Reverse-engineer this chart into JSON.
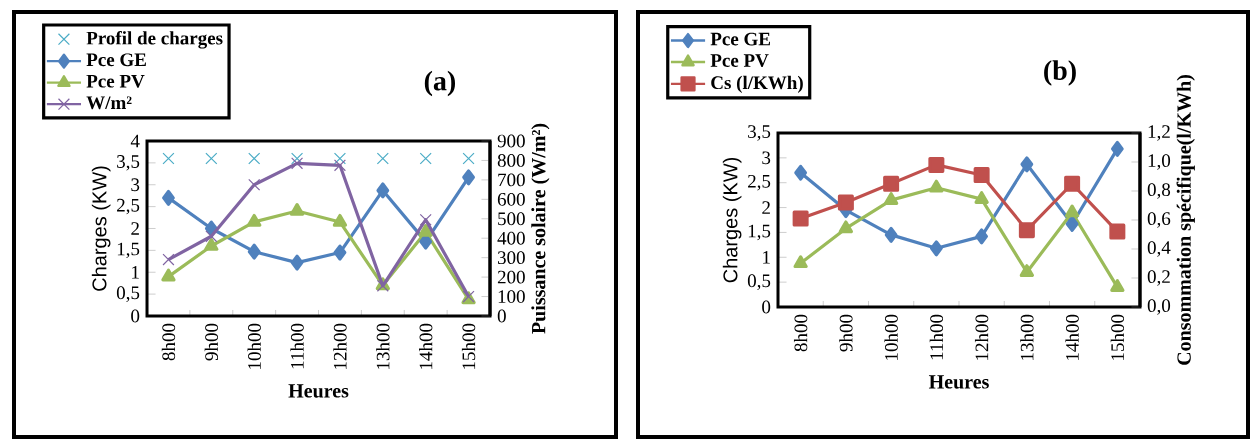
{
  "chart_data": [
    {
      "type": "line",
      "title": "(a)",
      "xlabel": "Heures",
      "ylabel": "Charges (KW)",
      "y2label": "Puissance solaire (W/m²)",
      "categories": [
        "8h00",
        "9h00",
        "10h00",
        "11h00",
        "12h00",
        "13h00",
        "14h00",
        "15h00"
      ],
      "series": [
        {
          "name": "Profil de charges",
          "type": "scatter",
          "marker": "cross",
          "color": "#4bacc6",
          "values": [
            3.6,
            3.6,
            3.6,
            3.6,
            3.6,
            3.6,
            3.6,
            3.6
          ]
        },
        {
          "name": "Pce GE",
          "marker": "diamond",
          "color": "#4f81bd",
          "values": [
            2.7,
            2.0,
            1.47,
            1.22,
            1.45,
            2.87,
            1.7,
            3.17
          ]
        },
        {
          "name": "Pce PV",
          "marker": "triangle",
          "color": "#9bbb59",
          "values": [
            0.9,
            1.6,
            2.15,
            2.4,
            2.15,
            0.7,
            1.92,
            0.38
          ]
        },
        {
          "name": "W/m²",
          "marker": "cross",
          "color": "#8064a2",
          "axis": "y2",
          "values": [
            290,
            410,
            675,
            785,
            775,
            155,
            495,
            100
          ]
        }
      ],
      "ylim": [
        0,
        4
      ],
      "yticks": [
        0,
        {
          "value": 0.5,
          "label": "0,5"
        },
        1,
        {
          "value": 1.5,
          "label": "1,5"
        },
        2,
        {
          "value": 2.5,
          "label": "2,5"
        },
        3,
        {
          "value": 3.5,
          "label": "3,5"
        },
        4
      ],
      "y2lim": [
        0,
        900
      ],
      "y2ticks": [
        0,
        100,
        200,
        300,
        400,
        500,
        600,
        700,
        800,
        900
      ],
      "legend": "top left"
    },
    {
      "type": "line",
      "title": "(b)",
      "xlabel": "Heures",
      "ylabel": "Charges (KW)",
      "y2label": "Consommation spécifique(l/KWh)",
      "categories": [
        "8h00",
        "9h00",
        "10h00",
        "11h00",
        "12h00",
        "13h00",
        "14h00",
        "15h00"
      ],
      "series": [
        {
          "name": "Pce GE",
          "marker": "diamond",
          "color": "#4f81bd",
          "values": [
            2.7,
            1.95,
            1.45,
            1.18,
            1.42,
            2.87,
            1.67,
            3.18
          ]
        },
        {
          "name": "Pce PV",
          "marker": "triangle",
          "color": "#9bbb59",
          "values": [
            0.88,
            1.58,
            2.15,
            2.4,
            2.17,
            0.7,
            1.9,
            0.4
          ]
        },
        {
          "name": "Cs (l/KWh)",
          "marker": "square",
          "color": "#c0504d",
          "axis": "y2",
          "values": [
            0.61,
            0.72,
            0.85,
            0.98,
            0.91,
            0.53,
            0.85,
            0.52
          ]
        }
      ],
      "ylim": [
        0,
        3.5
      ],
      "yticks": [
        0,
        {
          "value": 0.5,
          "label": "0,5"
        },
        1,
        {
          "value": 1.5,
          "label": "1,5"
        },
        2,
        {
          "value": 2.5,
          "label": "2,5"
        },
        3,
        {
          "value": 3.5,
          "label": "3,5"
        }
      ],
      "y2lim": [
        0,
        1.2
      ],
      "y2ticks": [
        {
          "value": 0,
          "label": "0,0"
        },
        {
          "value": 0.2,
          "label": "0,2"
        },
        {
          "value": 0.4,
          "label": "0,4"
        },
        {
          "value": 0.6,
          "label": "0,6"
        },
        {
          "value": 0.8,
          "label": "0,8"
        },
        {
          "value": 1.0,
          "label": "1,0"
        },
        {
          "value": 1.2,
          "label": "1,2"
        }
      ],
      "legend": "top left"
    }
  ]
}
